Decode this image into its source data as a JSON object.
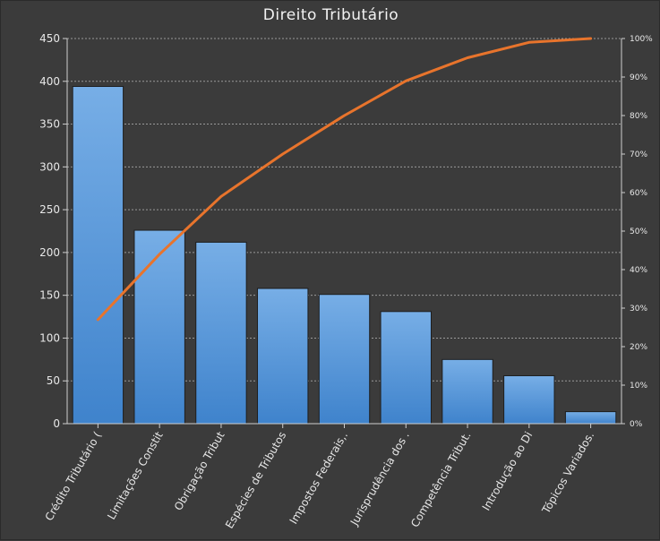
{
  "chart_data": {
    "type": "bar",
    "title": "Direito Tributário",
    "categories": [
      "Crédito Tributário (",
      "Limitações Constit",
      "Obrigação Tribut",
      "Espécies de Tributos",
      "Impostos Federais,.",
      "Jurisprudência dos .",
      "Competência Tribut.",
      "Introdução ao Di",
      "Tópicos Variados."
    ],
    "series": [
      {
        "type": "bar",
        "values": [
          394,
          226,
          212,
          158,
          151,
          131,
          75,
          56,
          14
        ]
      },
      {
        "type": "line",
        "axis": "secondary",
        "values": [
          27,
          44,
          59,
          70,
          80,
          89,
          95,
          99,
          100
        ]
      }
    ],
    "y_ticks": [
      "0",
      "50",
      "100",
      "150",
      "200",
      "250",
      "300",
      "350",
      "400",
      "450"
    ],
    "y2_ticks": [
      "0%",
      "10%",
      "20%",
      "30%",
      "40%",
      "50%",
      "60%",
      "70%",
      "80%",
      "90%",
      "100%"
    ],
    "ylim": [
      0,
      450
    ],
    "y2lim": [
      0,
      100
    ],
    "grid": true,
    "colors": {
      "bar_top": "#77aee6",
      "bar_bottom": "#3f83cc",
      "line": "#e8742c",
      "grid": "#9a9a9a",
      "axis": "#cfcfcf"
    }
  }
}
